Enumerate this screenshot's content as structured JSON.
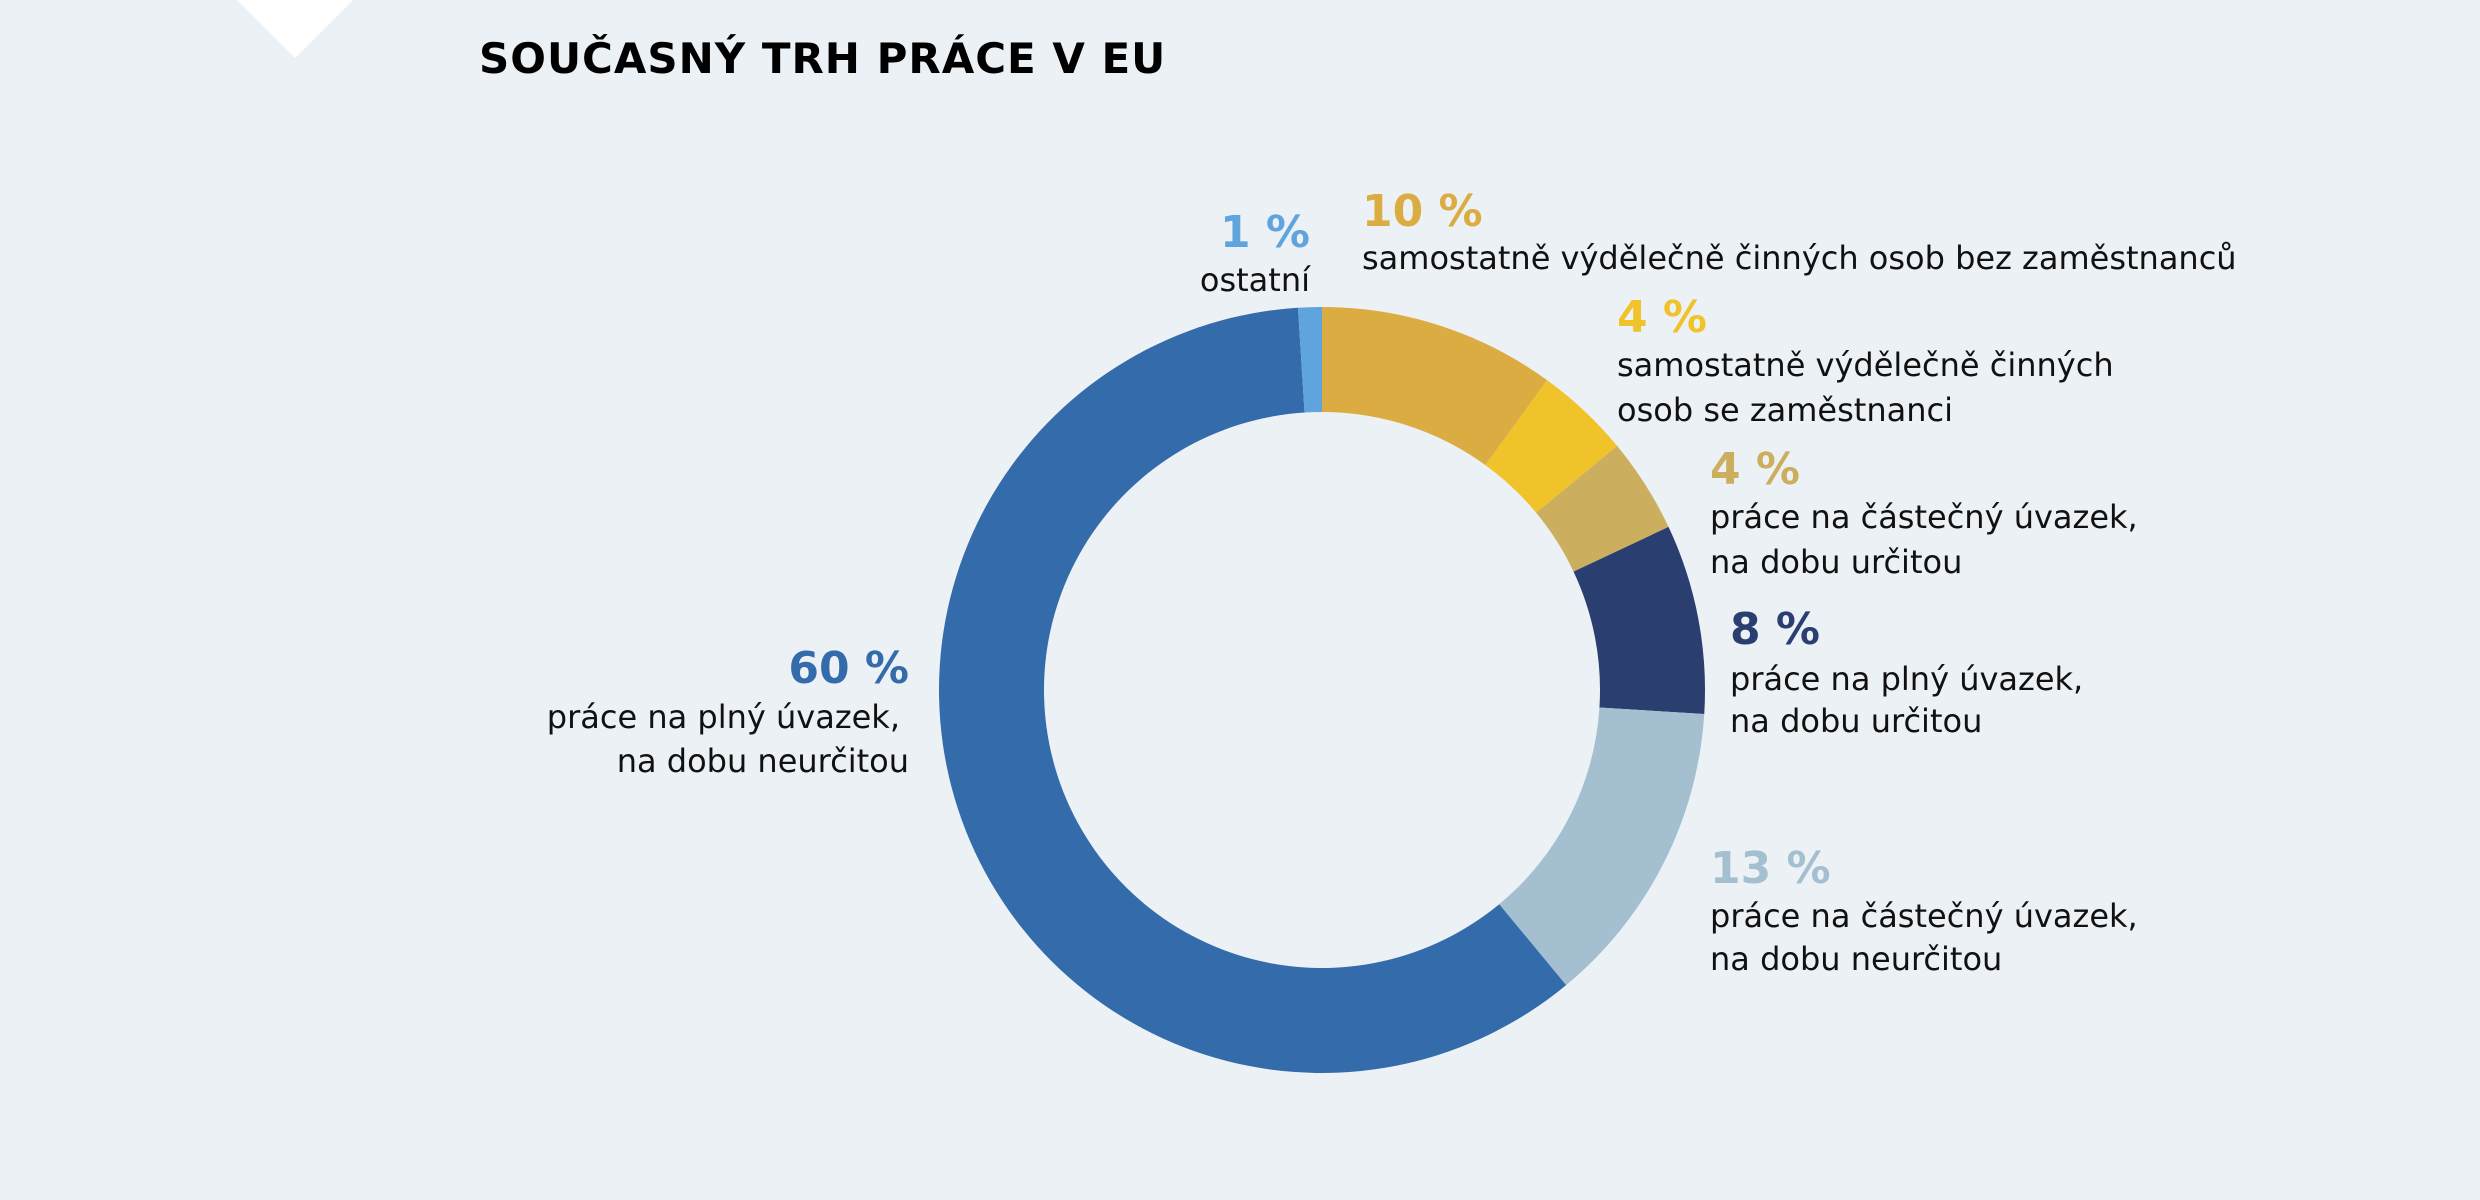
{
  "chart_data": {
    "type": "pie",
    "variant": "donut",
    "title": "SOUČASNÝ TRH PRÁCE V EU",
    "start": "top",
    "direction": "clockwise",
    "slices": [
      {
        "value": 10,
        "pct_label": "10 %",
        "lines": [
          "samostatně výdělečně činných osob bez zaměstnanců"
        ],
        "color": "#dbac41"
      },
      {
        "value": 4,
        "pct_label": "4 %",
        "lines": [
          "samostatně výdělečně činných",
          "osob se zaměstnanci"
        ],
        "color": "#f0c32a"
      },
      {
        "value": 4,
        "pct_label": "4 %",
        "lines": [
          "práce na částečný úvazek,",
          "na dobu určitou"
        ],
        "color": "#cbae5e"
      },
      {
        "value": 8,
        "pct_label": "8 %",
        "lines": [
          "práce na plný úvazek,",
          "na dobu určitou"
        ],
        "color": "#2a3e70"
      },
      {
        "value": 13,
        "pct_label": "13 %",
        "lines": [
          "práce na částečný úvazek,",
          "na dobu neurčitou"
        ],
        "color": "#a4bfd0"
      },
      {
        "value": 60,
        "pct_label": "60 %",
        "lines": [
          "práce na plný úvazek,",
          "na dobu neurčitou"
        ],
        "color": "#346baa"
      },
      {
        "value": 1,
        "pct_label": "1 %",
        "lines": [
          "ostatní"
        ],
        "color": "#5fa4dc"
      }
    ]
  }
}
